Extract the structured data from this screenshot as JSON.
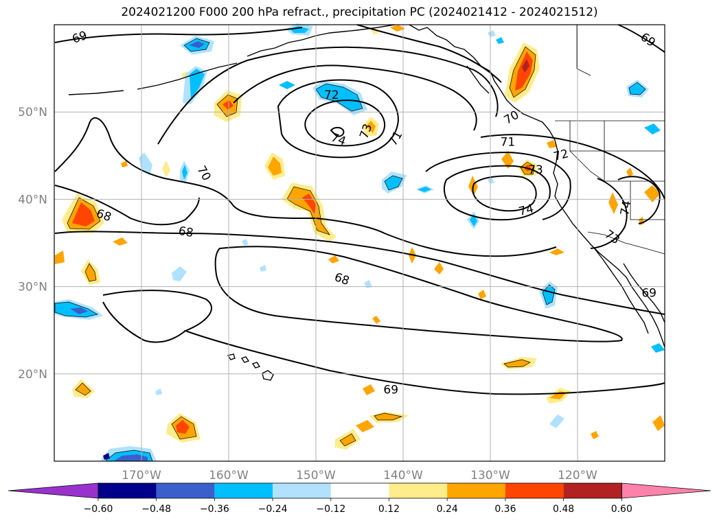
{
  "title": "2024021200 F000 200 hPa refract., precipitation PC (2024021412 - 2024021512)",
  "map": {
    "lon_range": [
      -180,
      -110
    ],
    "lat_range": [
      10,
      60
    ],
    "lon_ticks": [
      {
        "value": -170,
        "label": "170°W"
      },
      {
        "value": -160,
        "label": "160°W"
      },
      {
        "value": -150,
        "label": "150°W"
      },
      {
        "value": -140,
        "label": "140°W"
      },
      {
        "value": -130,
        "label": "130°W"
      },
      {
        "value": -120,
        "label": "120°W"
      }
    ],
    "lat_ticks": [
      {
        "value": 50,
        "label": "50°N"
      },
      {
        "value": 40,
        "label": "40°N"
      },
      {
        "value": 30,
        "label": "30°N"
      },
      {
        "value": 20,
        "label": "20°N"
      }
    ],
    "grid": true,
    "contour_labels": [
      {
        "text": "69",
        "lon": -177.1,
        "lat": 58.6,
        "rot": -20
      },
      {
        "text": "69",
        "lon": -111.9,
        "lat": 58.3,
        "rot": 35
      },
      {
        "text": "72",
        "lon": -148.2,
        "lat": 52.0,
        "rot": 0
      },
      {
        "text": "73",
        "lon": -144.3,
        "lat": 47.8,
        "rot": -70
      },
      {
        "text": "74",
        "lon": -147.4,
        "lat": 46.9,
        "rot": 20
      },
      {
        "text": "71",
        "lon": -140.9,
        "lat": 47.0,
        "rot": -60
      },
      {
        "text": "70",
        "lon": -127.6,
        "lat": 49.4,
        "rot": -30
      },
      {
        "text": "71",
        "lon": -128.0,
        "lat": 46.6,
        "rot": 0
      },
      {
        "text": "72",
        "lon": -121.9,
        "lat": 45.1,
        "rot": -15
      },
      {
        "text": "73",
        "lon": -124.8,
        "lat": 43.4,
        "rot": 0
      },
      {
        "text": "74",
        "lon": -125.9,
        "lat": 38.8,
        "rot": -15
      },
      {
        "text": "74",
        "lon": -114.5,
        "lat": 39.0,
        "rot": -80
      },
      {
        "text": "73",
        "lon": -116.0,
        "lat": 35.7,
        "rot": 35
      },
      {
        "text": "70",
        "lon": -162.8,
        "lat": 43.0,
        "rot": 60
      },
      {
        "text": "68",
        "lon": -174.3,
        "lat": 38.2,
        "rot": 20
      },
      {
        "text": "68",
        "lon": -164.9,
        "lat": 36.3,
        "rot": 10
      },
      {
        "text": "68",
        "lon": -147.0,
        "lat": 30.9,
        "rot": 20
      },
      {
        "text": "69",
        "lon": -111.8,
        "lat": 29.3,
        "rot": 0
      },
      {
        "text": "69",
        "lon": -141.4,
        "lat": 18.2,
        "rot": 0
      }
    ]
  },
  "colorbar": {
    "ticks": [
      "−0.60",
      "−0.48",
      "−0.36",
      "−0.24",
      "−0.12",
      "0.12",
      "0.24",
      "0.36",
      "0.48",
      "0.60"
    ],
    "colors": {
      "under": "#9932cc",
      "segments": [
        "#00008b",
        "#3a5fcd",
        "#00bfff",
        "#b0e2ff",
        "#ffffff",
        "#ffec8b",
        "#ffa500",
        "#ff4500",
        "#b22222"
      ],
      "over": "#ff82ab"
    }
  },
  "chart_data": {
    "type": "heatmap",
    "title": "2024021200 F000 200 hPa refract., precipitation PC (2024021412 - 2024021512)",
    "x_range": [
      -180,
      -110
    ],
    "y_range": [
      10,
      60
    ],
    "contour_levels": [
      68,
      69,
      70,
      71,
      72,
      73,
      74
    ],
    "colorbar_levels": [
      -0.6,
      -0.48,
      -0.36,
      -0.24,
      -0.12,
      0.12,
      0.24,
      0.36,
      0.48,
      0.6
    ],
    "colorbar_extend": "both"
  }
}
